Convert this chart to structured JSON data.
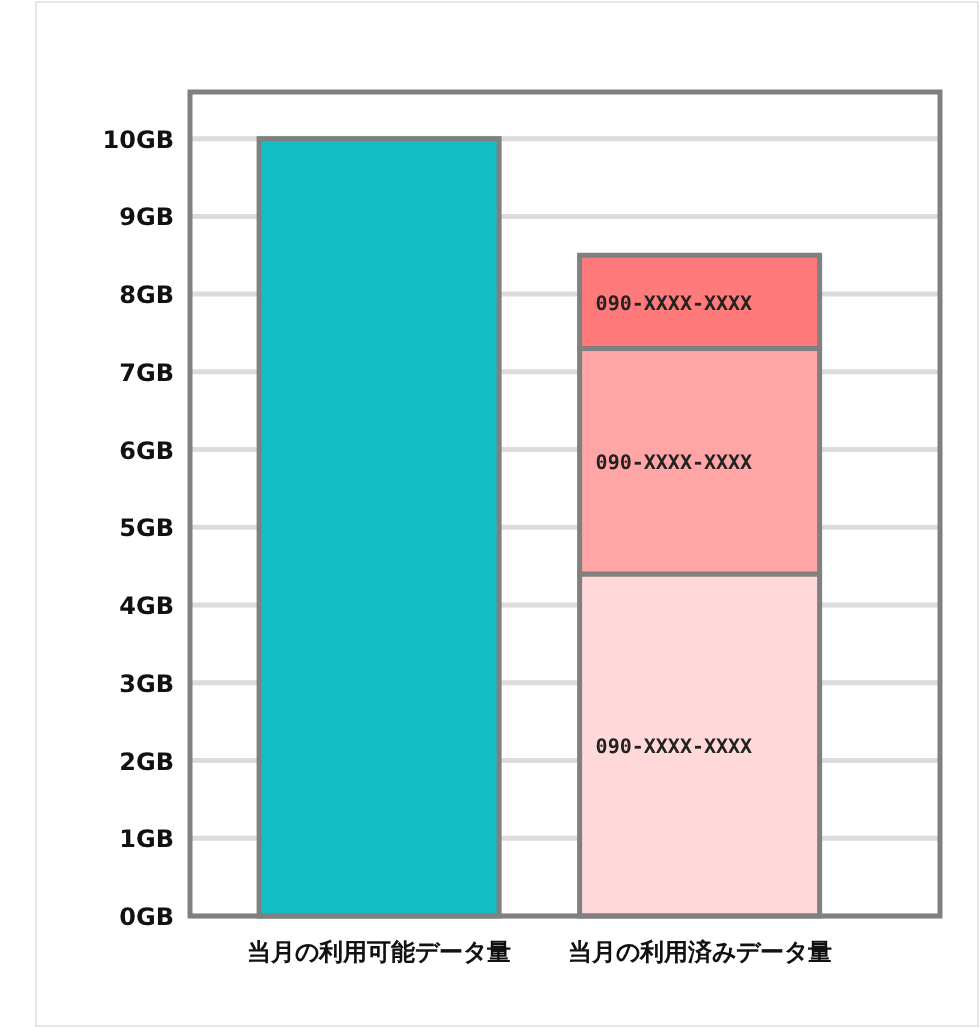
{
  "chart_data": {
    "type": "bar",
    "stacked": true,
    "categories": [
      "当月の利用可能データ量",
      "当月の利用済みデータ量"
    ],
    "series": [
      {
        "color": "#13bfc4",
        "values": [
          10,
          null
        ]
      },
      {
        "name": "090-XXXX-XXXX",
        "color": "#ffd9da",
        "values": [
          null,
          4.4
        ]
      },
      {
        "name": "090-XXXX-XXXX",
        "color": "#ffa5a5",
        "values": [
          null,
          2.9
        ]
      },
      {
        "name": "090-XXXX-XXXX",
        "color": "#ff7a7a",
        "values": [
          null,
          1.2
        ]
      }
    ],
    "ylim": [
      0,
      10.6
    ],
    "yticks": [
      {
        "value": 0,
        "label": "0GB"
      },
      {
        "value": 1,
        "label": "1GB"
      },
      {
        "value": 2,
        "label": "2GB"
      },
      {
        "value": 3,
        "label": "3GB"
      },
      {
        "value": 4,
        "label": "4GB"
      },
      {
        "value": 5,
        "label": "5GB"
      },
      {
        "value": 6,
        "label": "6GB"
      },
      {
        "value": 7,
        "label": "7GB"
      },
      {
        "value": 8,
        "label": "8GB"
      },
      {
        "value": 9,
        "label": "9GB"
      },
      {
        "value": 10,
        "label": "10GB"
      }
    ],
    "grid": "y",
    "legend": false
  }
}
